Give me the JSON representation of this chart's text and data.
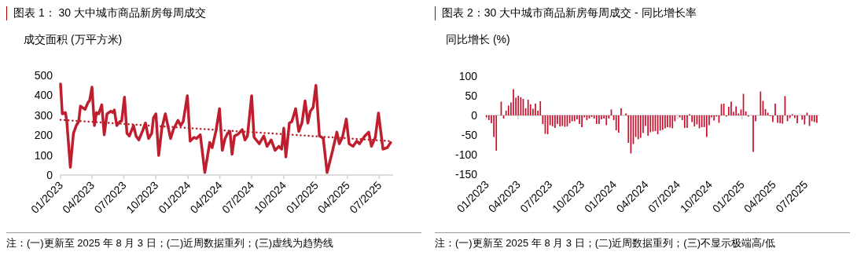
{
  "chart_data": [
    {
      "type": "line",
      "title": "图表 1： 30 大中城市商品新房每周成交",
      "ylabel": "成交面积 (万平方米)",
      "annotations": [
        "注：(一)更新至 2025 年 8 月 3 日；(二)近周数据重列；(三)虚线为趋势线"
      ],
      "xlim": [
        "2023-01-01",
        "2025-08-10"
      ],
      "xticks": [
        {
          "value": "2023-01",
          "label": "01/2023"
        },
        {
          "value": "2023-04",
          "label": "04/2023"
        },
        {
          "value": "2023-07",
          "label": "07/2023"
        },
        {
          "value": "2023-10",
          "label": "10/2023"
        },
        {
          "value": "2024-01",
          "label": "01/2024"
        },
        {
          "value": "2024-04",
          "label": "04/2024"
        },
        {
          "value": "2024-07",
          "label": "07/2024"
        },
        {
          "value": "2024-10",
          "label": "10/2024"
        },
        {
          "value": "2025-01",
          "label": "01/2025"
        },
        {
          "value": "2025-04",
          "label": "04/2025"
        },
        {
          "value": "2025-07",
          "label": "07/2025"
        }
      ],
      "ylim": [
        0,
        500
      ],
      "yticks": [
        0,
        100,
        200,
        300,
        400,
        500
      ],
      "series": [
        {
          "color": "#be1e2d",
          "x": [
            "2023-01-01",
            "2023-01-06",
            "2023-01-15",
            "2023-01-19",
            "2023-01-29",
            "2023-02-07",
            "2023-02-15",
            "2023-02-22",
            "2023-02-27",
            "2023-03-12",
            "2023-03-21",
            "2023-03-25",
            "2023-04-01",
            "2023-04-08",
            "2023-04-14",
            "2023-04-20",
            "2023-04-29",
            "2023-05-06",
            "2023-05-14",
            "2023-05-25",
            "2023-05-30",
            "2023-06-04",
            "2023-06-11",
            "2023-06-20",
            "2023-06-25",
            "2023-07-03",
            "2023-07-10",
            "2023-07-17",
            "2023-07-29",
            "2023-08-05",
            "2023-08-13",
            "2023-08-24",
            "2023-09-01",
            "2023-09-10",
            "2023-09-19",
            "2023-09-24",
            "2023-10-01",
            "2023-10-09",
            "2023-10-18",
            "2023-10-28",
            "2023-11-12",
            "2023-11-20",
            "2023-12-03",
            "2023-12-11",
            "2023-12-18",
            "2023-12-30",
            "2024-01-07",
            "2024-01-18",
            "2024-01-25",
            "2024-02-05",
            "2024-02-18",
            "2024-03-03",
            "2024-03-10",
            "2024-03-21",
            "2024-03-31",
            "2024-04-08",
            "2024-04-16",
            "2024-04-23",
            "2024-04-30",
            "2024-05-06",
            "2024-05-13",
            "2024-05-24",
            "2024-06-04",
            "2024-06-12",
            "2024-06-19",
            "2024-07-01",
            "2024-07-08",
            "2024-07-23",
            "2024-08-05",
            "2024-08-14",
            "2024-08-26",
            "2024-09-06",
            "2024-09-17",
            "2024-09-25",
            "2024-10-01",
            "2024-10-07",
            "2024-10-17",
            "2024-10-24",
            "2024-11-04",
            "2024-11-13",
            "2024-11-22",
            "2024-12-01",
            "2024-12-09",
            "2024-12-16",
            "2024-12-24",
            "2025-01-01",
            "2025-01-11",
            "2025-01-22",
            "2025-02-02",
            "2025-02-17",
            "2025-03-02",
            "2025-03-09",
            "2025-03-18",
            "2025-03-29",
            "2025-04-06",
            "2025-04-17",
            "2025-04-28",
            "2025-05-06",
            "2025-05-21",
            "2025-06-01",
            "2025-06-09",
            "2025-06-20",
            "2025-06-29",
            "2025-07-12",
            "2025-07-24",
            "2025-08-03"
          ],
          "values": [
            457,
            307,
            313,
            268,
            39,
            209,
            248,
            268,
            346,
            329,
            365,
            372,
            441,
            248,
            313,
            307,
            352,
            202,
            307,
            320,
            313,
            326,
            248,
            268,
            271,
            391,
            209,
            196,
            248,
            196,
            176,
            222,
            261,
            183,
            209,
            287,
            307,
            98,
            235,
            307,
            183,
            228,
            274,
            248,
            268,
            398,
            170,
            189,
            183,
            202,
            13,
            163,
            137,
            222,
            333,
            124,
            183,
            209,
            219,
            104,
            196,
            206,
            228,
            176,
            196,
            398,
            189,
            157,
            196,
            144,
            176,
            124,
            144,
            130,
            235,
            91,
            261,
            268,
            333,
            219,
            261,
            372,
            261,
            320,
            339,
            450,
            196,
            185,
            13,
            117,
            215,
            157,
            189,
            281,
            157,
            144,
            170,
            157,
            196,
            215,
            144,
            189,
            311,
            130,
            137,
            163
          ]
        },
        {
          "type": "line",
          "line_style": "dotted",
          "color": "#be1e2d",
          "x": [
            "2023-01-01",
            "2025-08-03"
          ],
          "values": [
            277,
            170
          ]
        }
      ]
    },
    {
      "type": "bar",
      "title": "图表 2：30 大中城市商品新房每周成交 - 同比增长率",
      "ylabel": "同比增长 (%)",
      "annotations": [
        "注：(一)更新至 2025 年 8 月 3 日；(二)近周数据重列；(三)不显示极端高/低"
      ],
      "xlim": [
        "2022-12-28",
        "2025-08-10"
      ],
      "xticks": [
        {
          "value": "2023-01",
          "label": "01/2023"
        },
        {
          "value": "2023-04",
          "label": "04/2023"
        },
        {
          "value": "2023-07",
          "label": "07/2023"
        },
        {
          "value": "2023-10",
          "label": "10/2023"
        },
        {
          "value": "2024-01",
          "label": "01/2024"
        },
        {
          "value": "2024-04",
          "label": "04/2024"
        },
        {
          "value": "2024-07",
          "label": "07/2024"
        },
        {
          "value": "2024-10",
          "label": "10/2024"
        },
        {
          "value": "2025-01",
          "label": "01/2025"
        },
        {
          "value": "2025-04",
          "label": "04/2025"
        },
        {
          "value": "2025-07",
          "label": "07/2025"
        }
      ],
      "ylim": [
        -150,
        100
      ],
      "yticks": [
        -150,
        -100,
        -50,
        0,
        50,
        100
      ],
      "color": "#c8102e",
      "x": [
        "2023-01-01",
        "2023-01-08",
        "2023-01-15",
        "2023-01-22",
        "2023-01-29",
        "2023-02-05",
        "2023-02-12",
        "2023-02-19",
        "2023-02-26",
        "2023-03-05",
        "2023-03-12",
        "2023-03-19",
        "2023-03-26",
        "2023-04-02",
        "2023-04-09",
        "2023-04-16",
        "2023-04-23",
        "2023-04-30",
        "2023-05-07",
        "2023-05-14",
        "2023-05-21",
        "2023-05-28",
        "2023-06-04",
        "2023-06-11",
        "2023-06-18",
        "2023-06-25",
        "2023-07-02",
        "2023-07-09",
        "2023-07-16",
        "2023-07-23",
        "2023-07-30",
        "2023-08-06",
        "2023-08-13",
        "2023-08-20",
        "2023-08-27",
        "2023-09-03",
        "2023-09-10",
        "2023-09-17",
        "2023-09-24",
        "2023-10-01",
        "2023-10-08",
        "2023-10-15",
        "2023-10-22",
        "2023-10-29",
        "2023-11-05",
        "2023-11-12",
        "2023-11-19",
        "2023-11-26",
        "2023-12-03",
        "2023-12-10",
        "2023-12-17",
        "2023-12-24",
        "2023-12-31",
        "2024-01-07",
        "2024-01-14",
        "2024-01-21",
        "2024-01-28",
        "2024-02-04",
        "2024-02-11",
        "2024-02-18",
        "2024-02-25",
        "2024-03-03",
        "2024-03-10",
        "2024-03-17",
        "2024-03-24",
        "2024-03-31",
        "2024-04-07",
        "2024-04-14",
        "2024-04-21",
        "2024-04-28",
        "2024-05-05",
        "2024-05-12",
        "2024-05-19",
        "2024-05-26",
        "2024-06-02",
        "2024-06-09",
        "2024-06-16",
        "2024-06-23",
        "2024-06-30",
        "2024-07-07",
        "2024-07-14",
        "2024-07-21",
        "2024-07-28",
        "2024-08-04",
        "2024-08-11",
        "2024-08-18",
        "2024-08-25",
        "2024-09-01",
        "2024-09-08",
        "2024-09-15",
        "2024-09-22",
        "2024-09-29",
        "2024-10-06",
        "2024-10-13",
        "2024-10-20",
        "2024-10-27",
        "2024-11-03",
        "2024-11-10",
        "2024-11-17",
        "2024-11-24",
        "2024-12-01",
        "2024-12-08",
        "2024-12-15",
        "2024-12-22",
        "2024-12-29",
        "2025-01-05",
        "2025-01-12",
        "2025-01-19",
        "2025-01-26",
        "2025-02-02",
        "2025-02-09",
        "2025-02-16",
        "2025-02-23",
        "2025-03-02",
        "2025-03-09",
        "2025-03-16",
        "2025-03-23",
        "2025-03-30",
        "2025-04-06",
        "2025-04-13",
        "2025-04-20",
        "2025-04-27",
        "2025-05-04",
        "2025-05-11",
        "2025-05-18",
        "2025-05-25",
        "2025-06-01",
        "2025-06-08",
        "2025-06-15",
        "2025-06-22",
        "2025-06-29",
        "2025-07-06",
        "2025-07-13",
        "2025-07-20",
        "2025-07-27",
        "2025-08-03"
      ],
      "values": [
        -5,
        -12,
        -20,
        -55,
        -90,
        null,
        35,
        -8,
        12,
        25,
        33,
        67,
        45,
        50,
        46,
        42,
        18,
        40,
        28,
        17,
        30,
        12,
        36,
        -22,
        -47,
        -48,
        -25,
        -28,
        -32,
        -22,
        -28,
        -27,
        -29,
        -28,
        -20,
        -15,
        -15,
        -10,
        -22,
        -30,
        -5,
        -12,
        -8,
        -4,
        -8,
        -22,
        -22,
        -10,
        -8,
        -25,
        -8,
        15,
        -12,
        -38,
        -44,
        18,
        null,
        5,
        -70,
        -97,
        -73,
        -55,
        -61,
        -57,
        -45,
        -27,
        -52,
        -43,
        -41,
        -40,
        -48,
        -39,
        -37,
        -33,
        -30,
        -31,
        -33,
        -15,
        null,
        -5,
        -12,
        -32,
        -32,
        3,
        -17,
        -28,
        -23,
        -33,
        -30,
        -30,
        -55,
        -25,
        -5,
        -13,
        -3,
        -19,
        29,
        30,
        -3,
        22,
        35,
        9,
        23,
        5,
        15,
        55,
        10,
        -3,
        null,
        -93,
        -15,
        null,
        61,
        37,
        16,
        7,
        -2,
        -17,
        30,
        -19,
        -20,
        -21,
        49,
        -15,
        -7,
        3,
        -7,
        -20,
        null,
        -11,
        -23,
        7,
        -27,
        -15,
        -17,
        -19
      ]
    }
  ]
}
